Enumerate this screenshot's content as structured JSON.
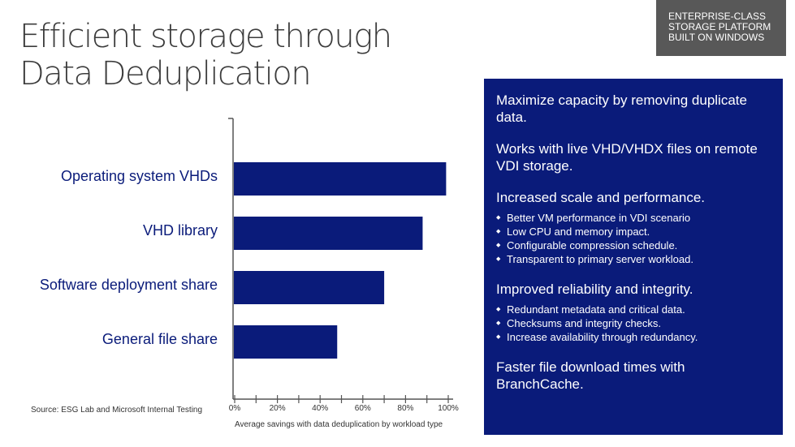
{
  "title": {
    "line1": "Efficient storage through",
    "line2": "Data Deduplication"
  },
  "badge": {
    "line1": "ENTERPRISE-CLASS",
    "line2": "STORAGE PLATFORM",
    "line3": "BUILT ON WINDOWS"
  },
  "panel": {
    "p1": "Maximize capacity by removing duplicate data.",
    "p2": "Works with live VHD/VHDX files on remote VDI storage.",
    "p3": "Increased scale and performance.",
    "list1": [
      "Better VM performance in VDI scenario",
      "Low CPU and memory impact.",
      "Configurable compression schedule.",
      "Transparent to primary server workload."
    ],
    "p4": "Improved reliability and integrity.",
    "list2": [
      "Redundant metadata and critical data.",
      "Checksums and integrity checks.",
      "Increase availability through redundancy."
    ],
    "p5": "Faster file download times with BranchCache."
  },
  "source": "Source: ESG Lab and Microsoft Internal Testing",
  "colors": {
    "bar": "#0a1b7a",
    "panel": "#0a1b7a",
    "badge": "#585858",
    "title": "#3c3c3c"
  },
  "chart_data": {
    "type": "bar",
    "orientation": "horizontal",
    "categories": [
      "Operating system VHDs",
      "VHD library",
      "Software deployment share",
      "General file share"
    ],
    "values": [
      99,
      88,
      70,
      48
    ],
    "xlim": [
      0,
      100
    ],
    "xticks": [
      "0%",
      "20%",
      "40%",
      "60%",
      "80%",
      "100%"
    ],
    "xlabel": "Average savings with data deduplication by workload type",
    "ylabel": "",
    "grid": false
  }
}
